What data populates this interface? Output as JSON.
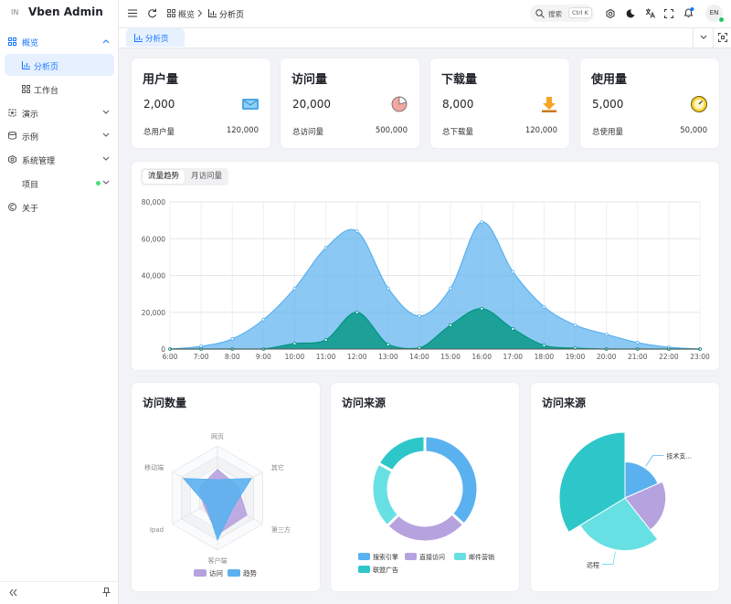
{
  "sidebar": {
    "logo": "IN",
    "title": "Vben Admin",
    "menu": [
      "概览",
      "分析页",
      "工作台",
      "演示",
      "示例",
      "系统管理",
      "项目",
      "关于"
    ]
  },
  "header": {
    "breadcrumb": [
      "概览",
      "分析页"
    ],
    "search": "搜索",
    "shortcut": "Ctrl K",
    "avatar": "EN"
  },
  "tabs": [
    "分析页"
  ],
  "cards": [
    {
      "title": "用户量",
      "value": "2,000",
      "footer_label": "总用户量",
      "footer_value": "120,000"
    },
    {
      "title": "访问量",
      "value": "20,000",
      "footer_label": "总访问量",
      "footer_value": "500,000"
    },
    {
      "title": "下载量",
      "value": "8,000",
      "footer_label": "总下载量",
      "footer_value": "120,000"
    },
    {
      "title": "使用量",
      "value": "5,000",
      "footer_label": "总使用量",
      "footer_value": "50,000"
    }
  ],
  "chart_data": [
    {
      "type": "area",
      "tabs": [
        "流量趋势",
        "月访问量"
      ],
      "categories": [
        "6:00",
        "7:00",
        "8:00",
        "9:00",
        "10:00",
        "11:00",
        "12:00",
        "13:00",
        "14:00",
        "15:00",
        "16:00",
        "17:00",
        "18:00",
        "19:00",
        "20:00",
        "21:00",
        "22:00",
        "23:00"
      ],
      "series": [
        {
          "color": "#5ab1ef",
          "values": [
            0,
            1500,
            5500,
            16000,
            33000,
            55000,
            64000,
            33000,
            18000,
            33000,
            69000,
            42000,
            23000,
            13000,
            8000,
            3500,
            1000,
            0
          ]
        },
        {
          "color": "#019680",
          "values": [
            0,
            0,
            0,
            0,
            3000,
            5000,
            20000,
            2500,
            500,
            13000,
            22000,
            11000,
            2000,
            500,
            0,
            0,
            0,
            0
          ]
        }
      ],
      "ylim": [
        0,
        80000
      ],
      "yticks": [
        0,
        {
          "value": 20000,
          "label": "20,000"
        },
        {
          "value": 40000,
          "label": "40,000"
        },
        {
          "value": 60000,
          "label": "60,000"
        },
        {
          "value": 80000,
          "label": "80,000"
        }
      ],
      "grid": true
    },
    {
      "type": "radar",
      "title": "访问数量",
      "indicators": [
        "网页",
        "其它",
        "第三方",
        "客户端",
        "Ipad",
        "移动端"
      ],
      "rlim": [
        0,
        100
      ],
      "series": [
        {
          "name": "访问",
          "color": "#b6a2de",
          "values": [
            55,
            45,
            65,
            70,
            30,
            40
          ]
        },
        {
          "name": "趋势",
          "color": "#5ab1ef",
          "values": [
            35,
            75,
            35,
            80,
            25,
            75
          ]
        }
      ]
    },
    {
      "type": "donut",
      "title": "访问来源",
      "categories": [
        "搜索引擎",
        "直接访问",
        "邮件营销",
        "联盟广告"
      ],
      "values": [
        1048,
        735,
        580,
        484
      ],
      "colors": [
        "#5ab1ef",
        "#b6a2de",
        "#67e0e3",
        "#2ec7c9"
      ]
    },
    {
      "type": "rose",
      "title": "访问来源",
      "categories": [
        "技术支...",
        null,
        "远程",
        null
      ],
      "values": [
        274,
        310,
        400,
        500
      ],
      "colors": [
        "#5ab1ef",
        "#b6a2de",
        "#67e0e3",
        "#2ec7c9"
      ]
    }
  ]
}
